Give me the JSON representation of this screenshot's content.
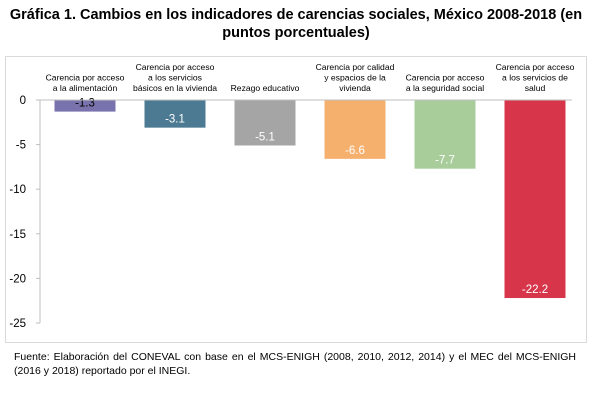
{
  "title_line1": "Gráfica 1. Cambios en los indicadores de carencias sociales, México 2008-2018 (en",
  "title_line2": "puntos porcentuales)",
  "footer": "Fuente: Elaboración del CONEVAL con base en el MCS-ENIGH (2008, 2010, 2012, 2014) y el MEC del MCS-ENIGH (2016 y 2018) reportado por el INEGI.",
  "chart_data": {
    "type": "bar",
    "categories": [
      [
        "Carencia por acceso",
        "a la alimentación"
      ],
      [
        "Carencia por acceso",
        "a los servicios",
        "básicos en la vivienda"
      ],
      [
        "Rezago educativo"
      ],
      [
        "Carencia por calidad",
        "y espacios de la",
        "vivienda"
      ],
      [
        "Carencia por acceso",
        "a la seguridad social"
      ],
      [
        "Carencia por acceso",
        "a los servicios de",
        "salud"
      ]
    ],
    "values": [
      -1.3,
      -3.1,
      -5.1,
      -6.6,
      -7.7,
      -22.2
    ],
    "value_labels": [
      "-1.3",
      "-3.1",
      "-5.1",
      "-6.6",
      "-7.7",
      "-22.2"
    ],
    "colors": [
      "#7872ad",
      "#4c7a92",
      "#a5a5a5",
      "#f6b06e",
      "#a8cd9b",
      "#d6354a"
    ],
    "label_colors": [
      "#000000",
      "#ffffff",
      "#ffffff",
      "#ffffff",
      "#ffffff",
      "#ffffff"
    ],
    "ylim": [
      -25,
      0
    ],
    "yticks": [
      0,
      -5,
      -10,
      -15,
      -20,
      -25
    ],
    "grid": false,
    "legend": "none"
  }
}
